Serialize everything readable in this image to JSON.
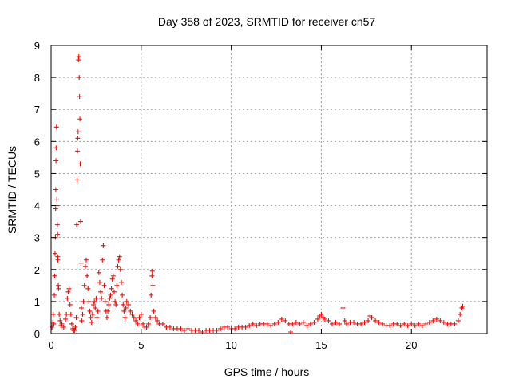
{
  "chart_data": {
    "type": "scatter",
    "title": "Day 358 of 2023, SRMTID for receiver cn57",
    "xlabel": "GPS time / hours",
    "ylabel": "SRMTID / TECUs",
    "xlim": [
      0,
      24.2
    ],
    "ylim": [
      0,
      9
    ],
    "x_ticks": [
      0,
      5,
      10,
      15,
      20
    ],
    "x_tick_labels": [
      "0",
      "5",
      "10",
      "15",
      "20"
    ],
    "y_ticks": [
      0,
      1,
      2,
      3,
      4,
      5,
      6,
      7,
      8,
      9
    ],
    "y_tick_labels": [
      "0",
      "1",
      "2",
      "3",
      "4",
      "5",
      "6",
      "7",
      "8",
      "9"
    ],
    "grid": true,
    "marker": "+",
    "color": "#ff0000",
    "series": [
      {
        "name": "SRMTID",
        "points": [
          [
            0.05,
            0.2
          ],
          [
            0.1,
            0.35
          ],
          [
            0.12,
            0.6
          ],
          [
            0.15,
            0.3
          ],
          [
            0.18,
            1.2
          ],
          [
            0.2,
            1.8
          ],
          [
            0.22,
            2.5
          ],
          [
            0.24,
            3.0
          ],
          [
            0.25,
            3.9
          ],
          [
            0.26,
            4.5
          ],
          [
            0.27,
            5.4
          ],
          [
            0.28,
            5.8
          ],
          [
            0.3,
            6.45
          ],
          [
            0.32,
            4.2
          ],
          [
            0.33,
            4.0
          ],
          [
            0.35,
            3.4
          ],
          [
            0.36,
            3.1
          ],
          [
            0.37,
            2.4
          ],
          [
            0.38,
            2.3
          ],
          [
            0.4,
            1.5
          ],
          [
            0.42,
            1.4
          ],
          [
            0.45,
            0.6
          ],
          [
            0.5,
            0.4
          ],
          [
            0.55,
            0.25
          ],
          [
            0.6,
            0.3
          ],
          [
            0.7,
            0.2
          ],
          [
            0.8,
            0.45
          ],
          [
            0.85,
            0.6
          ],
          [
            0.9,
            1.1
          ],
          [
            0.95,
            1.3
          ],
          [
            1.0,
            1.4
          ],
          [
            1.05,
            0.9
          ],
          [
            1.1,
            0.6
          ],
          [
            1.15,
            0.3
          ],
          [
            1.2,
            0.15
          ],
          [
            1.25,
            0.1
          ],
          [
            1.3,
            0.1
          ],
          [
            1.35,
            0.2
          ],
          [
            1.4,
            0.5
          ],
          [
            1.42,
            3.4
          ],
          [
            1.44,
            4.8
          ],
          [
            1.46,
            5.7
          ],
          [
            1.48,
            6.1
          ],
          [
            1.5,
            6.3
          ],
          [
            1.52,
            8.55
          ],
          [
            1.54,
            8.65
          ],
          [
            1.56,
            8.0
          ],
          [
            1.58,
            7.4
          ],
          [
            1.6,
            6.7
          ],
          [
            1.62,
            5.3
          ],
          [
            1.64,
            3.5
          ],
          [
            1.66,
            2.2
          ],
          [
            1.68,
            0.8
          ],
          [
            1.7,
            0.4
          ],
          [
            1.75,
            0.6
          ],
          [
            1.8,
            1.0
          ],
          [
            1.85,
            1.5
          ],
          [
            1.9,
            2.1
          ],
          [
            1.95,
            2.3
          ],
          [
            2.0,
            1.8
          ],
          [
            2.05,
            1.4
          ],
          [
            2.1,
            1.0
          ],
          [
            2.15,
            0.7
          ],
          [
            2.2,
            0.5
          ],
          [
            2.25,
            0.35
          ],
          [
            2.3,
            0.6
          ],
          [
            2.35,
            0.9
          ],
          [
            2.4,
            1.0
          ],
          [
            2.45,
            0.8
          ],
          [
            2.5,
            1.1
          ],
          [
            2.55,
            0.5
          ],
          [
            2.6,
            0.7
          ],
          [
            2.65,
            1.9
          ],
          [
            2.7,
            1.6
          ],
          [
            2.75,
            1.3
          ],
          [
            2.8,
            1.1
          ],
          [
            2.85,
            2.3
          ],
          [
            2.9,
            2.75
          ],
          [
            2.95,
            1.5
          ],
          [
            3.0,
            1.0
          ],
          [
            3.05,
            0.7
          ],
          [
            3.1,
            0.5
          ],
          [
            3.15,
            0.7
          ],
          [
            3.2,
            0.9
          ],
          [
            3.25,
            1.1
          ],
          [
            3.3,
            1.2
          ],
          [
            3.35,
            1.4
          ],
          [
            3.4,
            1.7
          ],
          [
            3.45,
            1.8
          ],
          [
            3.5,
            1.3
          ],
          [
            3.55,
            1.0
          ],
          [
            3.6,
            0.9
          ],
          [
            3.65,
            1.5
          ],
          [
            3.7,
            2.1
          ],
          [
            3.75,
            2.3
          ],
          [
            3.8,
            2.4
          ],
          [
            3.85,
            2.0
          ],
          [
            3.9,
            1.6
          ],
          [
            3.95,
            1.2
          ],
          [
            4.0,
            0.9
          ],
          [
            4.05,
            0.7
          ],
          [
            4.1,
            0.5
          ],
          [
            4.15,
            0.8
          ],
          [
            4.2,
            1.0
          ],
          [
            4.3,
            0.9
          ],
          [
            4.4,
            0.7
          ],
          [
            4.5,
            0.6
          ],
          [
            4.6,
            0.5
          ],
          [
            4.7,
            0.4
          ],
          [
            4.8,
            0.3
          ],
          [
            4.9,
            0.5
          ],
          [
            5.0,
            0.6
          ],
          [
            5.1,
            0.3
          ],
          [
            5.2,
            0.2
          ],
          [
            5.3,
            0.2
          ],
          [
            5.4,
            0.3
          ],
          [
            5.5,
            0.5
          ],
          [
            5.55,
            1.2
          ],
          [
            5.6,
            1.8
          ],
          [
            5.62,
            1.95
          ],
          [
            5.65,
            1.5
          ],
          [
            5.7,
            0.7
          ],
          [
            5.8,
            0.5
          ],
          [
            5.9,
            0.4
          ],
          [
            6.0,
            0.3
          ],
          [
            6.2,
            0.3
          ],
          [
            6.4,
            0.2
          ],
          [
            6.6,
            0.2
          ],
          [
            6.8,
            0.15
          ],
          [
            7.0,
            0.15
          ],
          [
            7.2,
            0.15
          ],
          [
            7.4,
            0.1
          ],
          [
            7.6,
            0.15
          ],
          [
            7.8,
            0.1
          ],
          [
            8.0,
            0.1
          ],
          [
            8.2,
            0.1
          ],
          [
            8.4,
            0.05
          ],
          [
            8.6,
            0.1
          ],
          [
            8.8,
            0.1
          ],
          [
            9.0,
            0.1
          ],
          [
            9.2,
            0.1
          ],
          [
            9.4,
            0.15
          ],
          [
            9.6,
            0.2
          ],
          [
            9.8,
            0.2
          ],
          [
            10.0,
            0.15
          ],
          [
            10.2,
            0.15
          ],
          [
            10.4,
            0.2
          ],
          [
            10.6,
            0.2
          ],
          [
            10.8,
            0.2
          ],
          [
            11.0,
            0.25
          ],
          [
            11.2,
            0.3
          ],
          [
            11.4,
            0.25
          ],
          [
            11.6,
            0.3
          ],
          [
            11.8,
            0.3
          ],
          [
            12.0,
            0.3
          ],
          [
            12.2,
            0.25
          ],
          [
            12.4,
            0.3
          ],
          [
            12.6,
            0.35
          ],
          [
            12.8,
            0.45
          ],
          [
            13.0,
            0.4
          ],
          [
            13.2,
            0.3
          ],
          [
            13.3,
            0.05
          ],
          [
            13.4,
            0.3
          ],
          [
            13.6,
            0.35
          ],
          [
            13.8,
            0.3
          ],
          [
            14.0,
            0.35
          ],
          [
            14.2,
            0.25
          ],
          [
            14.4,
            0.3
          ],
          [
            14.6,
            0.35
          ],
          [
            14.8,
            0.45
          ],
          [
            14.9,
            0.55
          ],
          [
            15.0,
            0.6
          ],
          [
            15.1,
            0.5
          ],
          [
            15.2,
            0.45
          ],
          [
            15.4,
            0.4
          ],
          [
            15.6,
            0.3
          ],
          [
            15.8,
            0.35
          ],
          [
            16.0,
            0.3
          ],
          [
            16.2,
            0.8
          ],
          [
            16.3,
            0.4
          ],
          [
            16.4,
            0.3
          ],
          [
            16.6,
            0.35
          ],
          [
            16.8,
            0.35
          ],
          [
            17.0,
            0.3
          ],
          [
            17.2,
            0.3
          ],
          [
            17.4,
            0.35
          ],
          [
            17.6,
            0.4
          ],
          [
            17.7,
            0.55
          ],
          [
            17.8,
            0.5
          ],
          [
            18.0,
            0.4
          ],
          [
            18.2,
            0.35
          ],
          [
            18.4,
            0.3
          ],
          [
            18.6,
            0.25
          ],
          [
            18.8,
            0.25
          ],
          [
            19.0,
            0.3
          ],
          [
            19.2,
            0.3
          ],
          [
            19.4,
            0.25
          ],
          [
            19.6,
            0.3
          ],
          [
            19.8,
            0.25
          ],
          [
            20.0,
            0.3
          ],
          [
            20.2,
            0.25
          ],
          [
            20.4,
            0.3
          ],
          [
            20.6,
            0.25
          ],
          [
            20.8,
            0.3
          ],
          [
            21.0,
            0.35
          ],
          [
            21.2,
            0.4
          ],
          [
            21.4,
            0.45
          ],
          [
            21.6,
            0.4
          ],
          [
            21.8,
            0.35
          ],
          [
            22.0,
            0.3
          ],
          [
            22.2,
            0.3
          ],
          [
            22.4,
            0.3
          ],
          [
            22.6,
            0.4
          ],
          [
            22.7,
            0.6
          ],
          [
            22.8,
            0.8
          ],
          [
            22.85,
            0.85
          ]
        ]
      }
    ]
  }
}
